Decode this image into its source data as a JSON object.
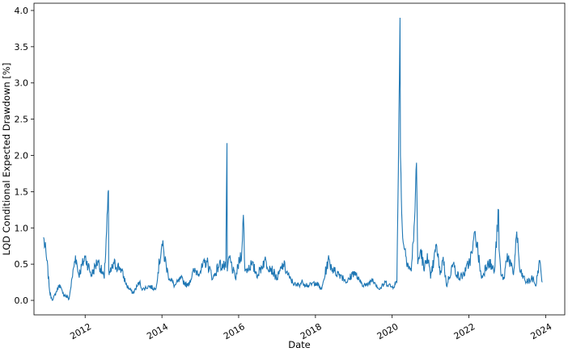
{
  "chart_data": {
    "type": "line",
    "xlabel": "Date",
    "ylabel": "LQD Conditional Expected Drawdown [%]",
    "xlim": [
      "2010-09-01",
      "2024-07-01"
    ],
    "ylim": [
      -0.2,
      4.1
    ],
    "x_ticks": [
      "2012",
      "2014",
      "2016",
      "2018",
      "2020",
      "2022",
      "2024"
    ],
    "y_ticks": [
      "0.0",
      "0.5",
      "1.0",
      "1.5",
      "2.0",
      "2.5",
      "3.0",
      "3.5",
      "4.0"
    ],
    "grid": false,
    "legend": "none",
    "series": [
      {
        "color": "#1f77b4",
        "x": [
          "2010-12-01",
          "2011-01-01",
          "2011-02-01",
          "2011-03-01",
          "2011-05-01",
          "2011-06-01",
          "2011-08-01",
          "2011-10-01",
          "2011-11-01",
          "2012-01-01",
          "2012-03-01",
          "2012-05-01",
          "2012-07-01",
          "2012-08-10",
          "2012-08-12",
          "2012-08-16",
          "2012-10-01",
          "2012-12-01",
          "2013-02-01",
          "2013-04-01",
          "2013-06-01",
          "2013-07-01",
          "2013-09-01",
          "2013-11-01",
          "2014-01-01",
          "2014-03-01",
          "2014-05-01",
          "2014-07-01",
          "2014-09-01",
          "2014-11-01",
          "2015-01-01",
          "2015-03-01",
          "2015-05-01",
          "2015-07-01",
          "2015-09-01",
          "2015-09-12",
          "2015-09-15",
          "2015-10-01",
          "2015-12-01",
          "2016-02-01",
          "2016-02-15",
          "2016-03-01",
          "2016-05-01",
          "2016-07-01",
          "2016-09-01",
          "2016-11-01",
          "2017-01-01",
          "2017-03-01",
          "2017-05-01",
          "2017-07-01",
          "2017-09-01",
          "2017-11-01",
          "2018-01-01",
          "2018-03-01",
          "2018-05-01",
          "2018-07-01",
          "2018-09-01",
          "2018-11-01",
          "2019-01-01",
          "2019-03-01",
          "2019-05-01",
          "2019-07-01",
          "2019-09-01",
          "2019-11-01",
          "2020-01-01",
          "2020-02-15",
          "2020-03-10",
          "2020-03-16",
          "2020-03-20",
          "2020-03-25",
          "2020-04-01",
          "2020-04-15",
          "2020-05-01",
          "2020-06-01",
          "2020-07-01",
          "2020-08-01",
          "2020-08-20",
          "2020-09-01",
          "2020-10-01",
          "2020-11-01",
          "2020-12-01",
          "2021-01-01",
          "2021-02-01",
          "2021-03-01",
          "2021-04-01",
          "2021-05-01",
          "2021-06-01",
          "2021-08-01",
          "2021-10-01",
          "2021-12-01",
          "2022-02-01",
          "2022-03-01",
          "2022-05-01",
          "2022-07-01",
          "2022-09-01",
          "2022-10-10",
          "2022-10-15",
          "2022-11-01",
          "2022-12-01",
          "2023-01-01",
          "2023-03-01",
          "2023-04-01",
          "2023-05-01",
          "2023-07-01",
          "2023-09-01",
          "2023-10-01",
          "2023-11-01",
          "2023-12-01"
        ],
        "y": [
          0.87,
          0.55,
          0.08,
          0.01,
          0.22,
          0.1,
          0.02,
          0.62,
          0.35,
          0.6,
          0.35,
          0.55,
          0.3,
          1.52,
          0.45,
          0.35,
          0.5,
          0.45,
          0.2,
          0.1,
          0.25,
          0.15,
          0.2,
          0.15,
          0.78,
          0.35,
          0.2,
          0.3,
          0.2,
          0.4,
          0.4,
          0.55,
          0.3,
          0.5,
          0.45,
          2.17,
          0.4,
          0.6,
          0.3,
          0.7,
          1.18,
          0.4,
          0.5,
          0.35,
          0.55,
          0.45,
          0.3,
          0.5,
          0.3,
          0.2,
          0.25,
          0.2,
          0.25,
          0.15,
          0.55,
          0.4,
          0.35,
          0.25,
          0.4,
          0.25,
          0.2,
          0.3,
          0.15,
          0.25,
          0.18,
          0.25,
          3.05,
          3.9,
          2.0,
          1.75,
          1.2,
          0.8,
          0.7,
          0.5,
          0.4,
          1.1,
          1.9,
          0.5,
          0.7,
          0.4,
          0.65,
          0.3,
          0.55,
          0.75,
          0.35,
          0.6,
          0.2,
          0.5,
          0.3,
          0.4,
          0.65,
          0.95,
          0.3,
          0.55,
          0.4,
          1.25,
          0.7,
          0.35,
          0.3,
          0.65,
          0.35,
          0.95,
          0.4,
          0.25,
          0.3,
          0.2,
          0.55,
          0.25
        ]
      }
    ]
  }
}
